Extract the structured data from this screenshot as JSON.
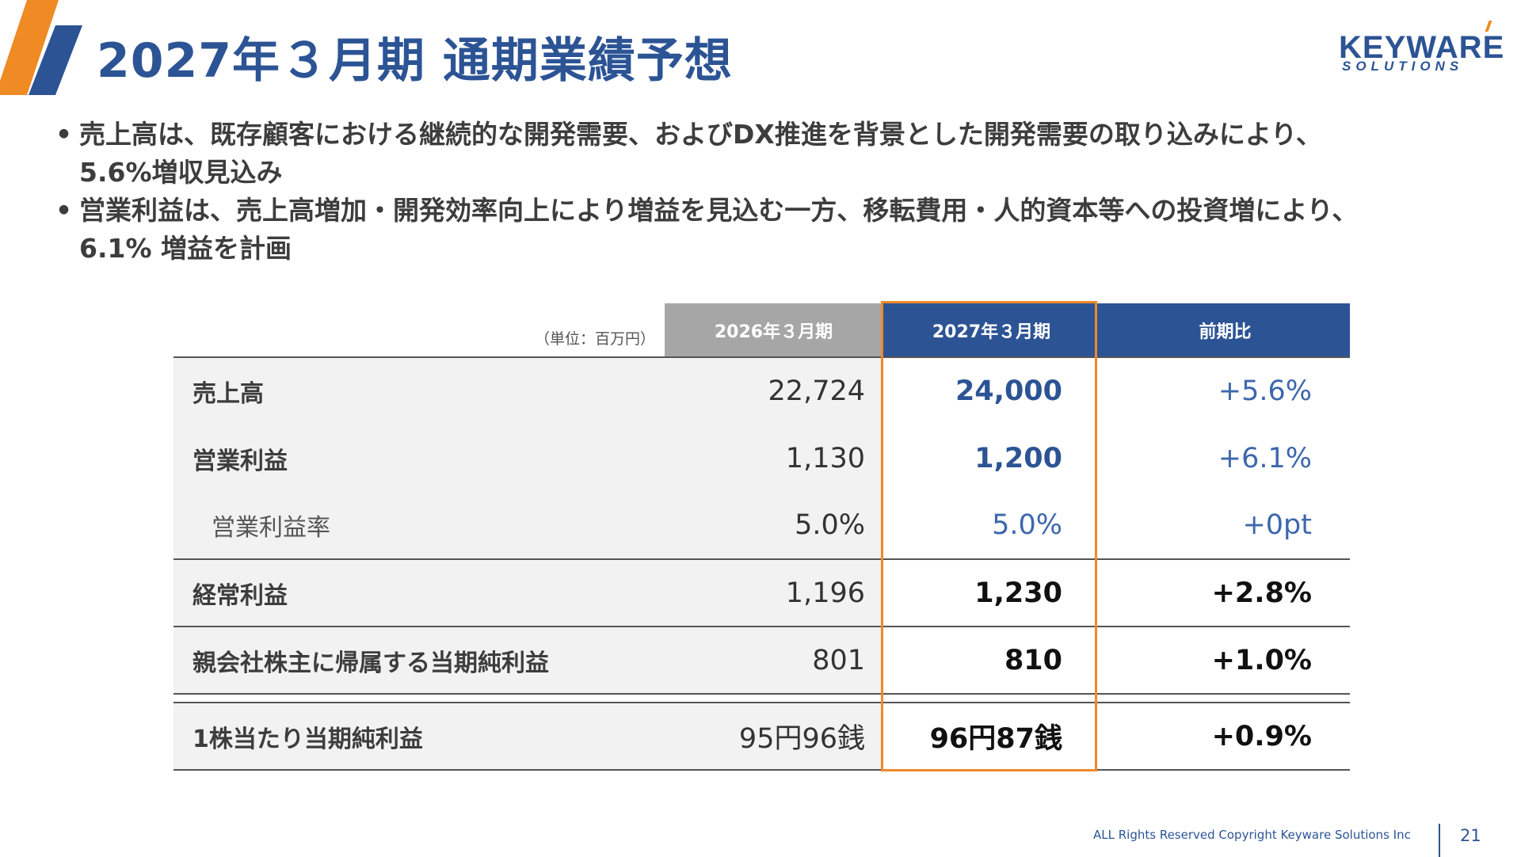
{
  "header": {
    "title": "2027年３月期 通期業績予想",
    "logo_main": "KEYWARE",
    "logo_sub": "SOLUTIONS"
  },
  "bullets": [
    {
      "lines": [
        "売上高は、既存顧客における継続的な開発需要、およびDX推進を背景とした開発需要の取り込みにより、",
        "5.6%増収見込み"
      ]
    },
    {
      "lines": [
        "営業利益は、売上高増加・開発効率向上により増益を見込む一方、移転費用・人的資本等への投資増により、",
        "6.1% 増益を計画"
      ]
    }
  ],
  "table": {
    "unit": "（単位：百万円）",
    "headers": [
      "2026年３月期",
      "2027年３月期",
      "前期比"
    ],
    "rows": [
      {
        "label": "売上高",
        "prev": "22,724",
        "cur": "24,000",
        "chg": "+5.6%"
      },
      {
        "label": "営業利益",
        "prev": "1,130",
        "cur": "1,200",
        "chg": "+6.1%"
      },
      {
        "label": "営業利益率",
        "prev": "5.0%",
        "cur": "5.0%",
        "chg": "+0pt"
      },
      {
        "label": "経常利益",
        "prev": "1,196",
        "cur": "1,230",
        "chg": "+2.8%"
      },
      {
        "label": "親会社株主に帰属する当期純利益",
        "prev": "801",
        "cur": "810",
        "chg": "+1.0%"
      },
      {
        "label": "1株当たり当期純利益",
        "prev": "95円96銭",
        "cur": "96円87銭",
        "chg": "+0.9%"
      }
    ]
  },
  "footer": {
    "copyright": "ALL Rights Reserved Copyright Keyware Solutions Inc",
    "page_number": "21"
  },
  "colors": {
    "brand_blue": "#2c5495",
    "accent_orange": "#f0892a",
    "header_gray": "#a6a6a6",
    "label_bg": "#f2f2f2"
  }
}
